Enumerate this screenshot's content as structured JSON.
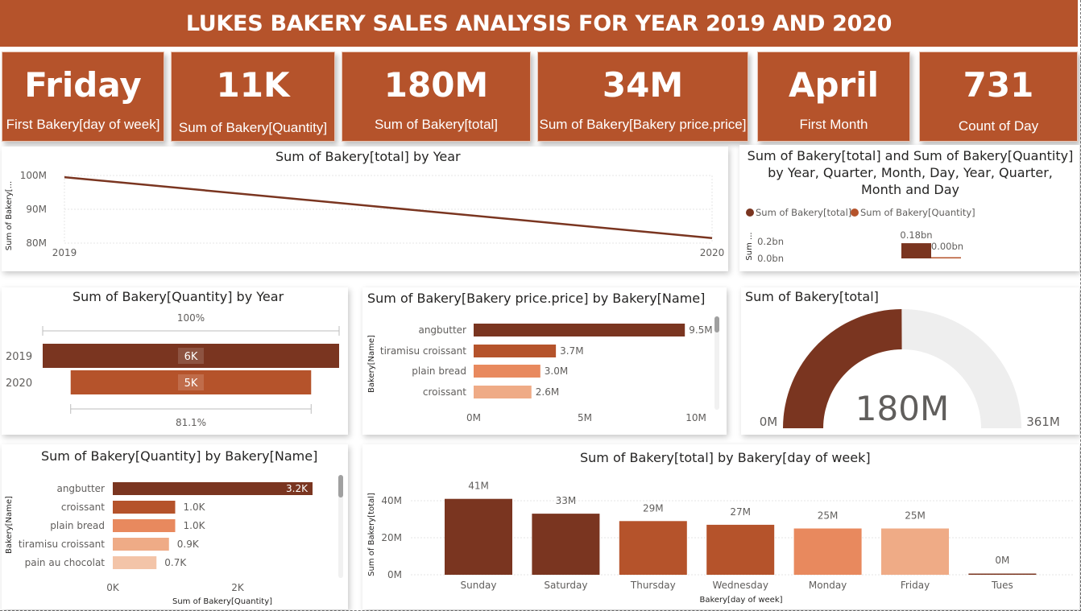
{
  "title": "LUKES BAKERY SALES ANALYSIS FOR YEAR 2019 AND 2020",
  "colors": {
    "primary": "#b5532b",
    "dark": "#7a3520",
    "mid": "#b5532b",
    "light": "#e8895e",
    "pale": "#efab86",
    "gray": "#eeeeee"
  },
  "kpis": [
    {
      "value": "Friday",
      "label": "First Bakery[day of week]"
    },
    {
      "value": "11K",
      "label": "Sum of Bakery[Quantity]"
    },
    {
      "value": "180M",
      "label": "Sum of Bakery[total]"
    },
    {
      "value": "34M",
      "label": "Sum of Bakery[Bakery price.price]"
    },
    {
      "value": "April",
      "label": "First Month"
    },
    {
      "value": "731",
      "label": "Count of Day"
    }
  ],
  "chart_data": [
    {
      "id": "total_by_year",
      "type": "line",
      "title": "Sum of Bakery[total] by Year",
      "ylabel": "Sum of Bakery[...",
      "x": [
        "2019",
        "2020"
      ],
      "values": [
        99500000,
        81500000
      ],
      "yticks": [
        "100M",
        "90M",
        "80M"
      ],
      "ylim": [
        80000000,
        100000000
      ],
      "grid": true
    },
    {
      "id": "total_qty_hierarchy",
      "type": "bar",
      "title": "Sum of Bakery[total] and Sum of Bakery[Quantity] by Year, Quarter, Month, Day, Year, Quarter, Month and Day",
      "ylabel": "Sum ...",
      "legend": [
        "Sum of Bakery[total]",
        "Sum of Bakery[Quantity]"
      ],
      "legend_position": "top-left",
      "yticks": [
        "0.2bn",
        "0.0bn"
      ],
      "series": [
        {
          "name": "Sum of Bakery[total]",
          "values": [
            0.18
          ],
          "label": "0.18bn"
        },
        {
          "name": "Sum of Bakery[Quantity]",
          "values": [
            0.0
          ],
          "label": "0.00bn"
        }
      ]
    },
    {
      "id": "qty_by_year",
      "type": "bar",
      "subtype": "funnel",
      "title": "Sum of Bakery[Quantity] by Year",
      "categories": [
        "2019",
        "2020"
      ],
      "values": [
        6200,
        5030
      ],
      "labels": [
        "6K",
        "5K"
      ],
      "top_pct": "100%",
      "bottom_pct": "81.1%"
    },
    {
      "id": "price_by_name",
      "type": "bar",
      "orientation": "horizontal",
      "title": "Sum of Bakery[Bakery price.price] by Bakery[Name]",
      "ylabel": "Bakery[Name]",
      "categories": [
        "angbutter",
        "tiramisu croissant",
        "plain bread",
        "croissant"
      ],
      "values": [
        9.5,
        3.7,
        3.0,
        2.6
      ],
      "labels": [
        "9.5M",
        "3.7M",
        "3.0M",
        "2.6M"
      ],
      "xticks": [
        "0M",
        "5M",
        "10M"
      ],
      "xlim": [
        0,
        10
      ]
    },
    {
      "id": "total_gauge",
      "type": "gauge",
      "title": "Sum of Bakery[total]",
      "value": 180,
      "value_label": "180M",
      "min_label": "0M",
      "max_label": "361M",
      "min": 0,
      "max": 361
    },
    {
      "id": "qty_by_name",
      "type": "bar",
      "orientation": "horizontal",
      "title": "Sum of Bakery[Quantity] by Bakery[Name]",
      "xlabel": "Sum of Bakery[Quantity]",
      "ylabel": "Bakery[Name]",
      "categories": [
        "angbutter",
        "croissant",
        "plain bread",
        "tiramisu croissant",
        "pain au chocolat"
      ],
      "values": [
        3.2,
        1.0,
        1.0,
        0.9,
        0.7
      ],
      "labels": [
        "3.2K",
        "1.0K",
        "1.0K",
        "0.9K",
        "0.7K"
      ],
      "xticks": [
        "0K",
        "2K"
      ],
      "xlim": [
        0,
        3.2
      ]
    },
    {
      "id": "total_by_dow",
      "type": "bar",
      "title": "Sum of Bakery[total] by Bakery[day of week]",
      "xlabel": "Bakery[day of week]",
      "ylabel": "Sum of Bakery[total]",
      "categories": [
        "Sunday",
        "Saturday",
        "Thursday",
        "Wednesday",
        "Monday",
        "Friday",
        "Tues"
      ],
      "values": [
        41,
        33,
        29,
        27,
        25,
        25,
        0.1
      ],
      "labels": [
        "41M",
        "33M",
        "29M",
        "27M",
        "25M",
        "25M",
        "0M"
      ],
      "yticks": [
        "40M",
        "20M",
        "0M"
      ],
      "ylim": [
        0,
        41
      ],
      "grid": true
    }
  ]
}
